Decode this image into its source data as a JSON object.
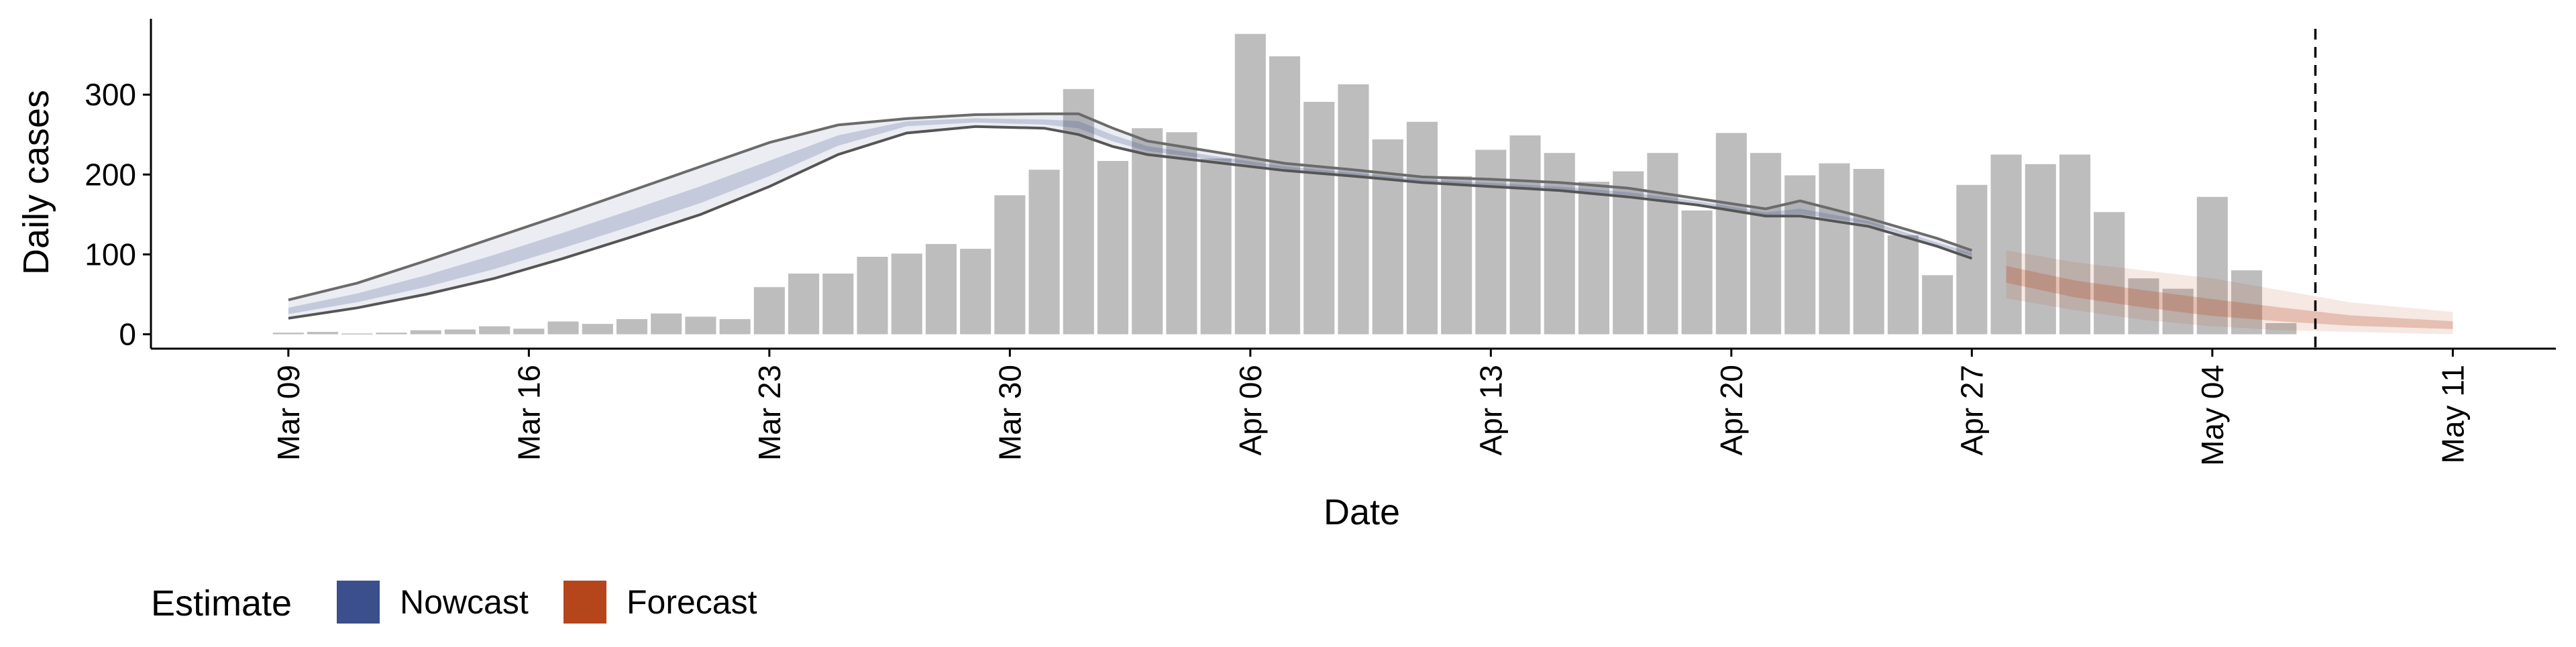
{
  "chart_data": {
    "type": "bar",
    "title": "",
    "xlabel": "Date",
    "ylabel": "Daily cases",
    "ylim": [
      -18,
      395
    ],
    "y_ticks": [
      0,
      100,
      200,
      300
    ],
    "x_ticks": [
      "2020-03-09",
      "2020-03-16",
      "2020-03-23",
      "2020-03-30",
      "2020-04-06",
      "2020-04-13",
      "2020-04-20",
      "2020-04-27",
      "2020-05-04",
      "2020-05-11"
    ],
    "x_tick_labels": [
      "Mar 09",
      "Mar 16",
      "Mar 23",
      "Mar 30",
      "Apr 06",
      "Apr 13",
      "Apr 20",
      "Apr 27",
      "May 04",
      "May 11"
    ],
    "xlim": [
      "2020-03-05",
      "2020-05-14"
    ],
    "grid": false,
    "bar_color": "#bdbdbd",
    "bars": {
      "dates": [
        "2020-03-09",
        "2020-03-10",
        "2020-03-11",
        "2020-03-12",
        "2020-03-13",
        "2020-03-14",
        "2020-03-15",
        "2020-03-16",
        "2020-03-17",
        "2020-03-18",
        "2020-03-19",
        "2020-03-20",
        "2020-03-21",
        "2020-03-22",
        "2020-03-23",
        "2020-03-24",
        "2020-03-25",
        "2020-03-26",
        "2020-03-27",
        "2020-03-28",
        "2020-03-29",
        "2020-03-30",
        "2020-03-31",
        "2020-04-01",
        "2020-04-02",
        "2020-04-03",
        "2020-04-04",
        "2020-04-05",
        "2020-04-06",
        "2020-04-07",
        "2020-04-08",
        "2020-04-09",
        "2020-04-10",
        "2020-04-11",
        "2020-04-12",
        "2020-04-13",
        "2020-04-14",
        "2020-04-15",
        "2020-04-16",
        "2020-04-17",
        "2020-04-18",
        "2020-04-19",
        "2020-04-20",
        "2020-04-21",
        "2020-04-22",
        "2020-04-23",
        "2020-04-24",
        "2020-04-25",
        "2020-04-26",
        "2020-04-27",
        "2020-04-28",
        "2020-04-29",
        "2020-04-30",
        "2020-05-01",
        "2020-05-02",
        "2020-05-03",
        "2020-05-04",
        "2020-05-05",
        "2020-05-06"
      ],
      "values": [
        2,
        3,
        1,
        2,
        5,
        6,
        10,
        7,
        16,
        13,
        19,
        26,
        22,
        19,
        59,
        76,
        76,
        97,
        101,
        113,
        107,
        174,
        206,
        307,
        217,
        258,
        253,
        220,
        376,
        348,
        291,
        313,
        244,
        266,
        198,
        231,
        249,
        227,
        191,
        204,
        227,
        155,
        252,
        227,
        199,
        214,
        207,
        124,
        74,
        187,
        225,
        213,
        225,
        153,
        70,
        57,
        172,
        80,
        14
      ]
    },
    "series": [
      {
        "name": "Nowcast",
        "color": "#3a4f8b",
        "dates": [
          "2020-03-09",
          "2020-03-11",
          "2020-03-13",
          "2020-03-15",
          "2020-03-17",
          "2020-03-19",
          "2020-03-21",
          "2020-03-23",
          "2020-03-25",
          "2020-03-27",
          "2020-03-29",
          "2020-03-31",
          "2020-04-01",
          "2020-04-02",
          "2020-04-03",
          "2020-04-05",
          "2020-04-07",
          "2020-04-09",
          "2020-04-11",
          "2020-04-13",
          "2020-04-15",
          "2020-04-17",
          "2020-04-19",
          "2020-04-21",
          "2020-04-22",
          "2020-04-24",
          "2020-04-26",
          "2020-04-27"
        ],
        "lower": [
          20,
          33,
          50,
          70,
          95,
          122,
          150,
          185,
          225,
          252,
          260,
          258,
          250,
          235,
          225,
          215,
          205,
          198,
          190,
          185,
          180,
          172,
          162,
          148,
          148,
          135,
          110,
          95
        ],
        "median": [
          28,
          44,
          64,
          88,
          115,
          143,
          172,
          205,
          242,
          265,
          268,
          265,
          262,
          245,
          232,
          220,
          208,
          200,
          192,
          187,
          182,
          175,
          165,
          150,
          152,
          140,
          112,
          100
        ],
        "upper": [
          43,
          64,
          92,
          121,
          150,
          180,
          210,
          240,
          262,
          270,
          275,
          276,
          276,
          258,
          242,
          228,
          214,
          206,
          197,
          194,
          190,
          183,
          170,
          157,
          167,
          145,
          120,
          105
        ]
      },
      {
        "name": "Forecast",
        "color": "#b5451b",
        "dates": [
          "2020-04-28",
          "2020-04-30",
          "2020-05-02",
          "2020-05-04",
          "2020-05-06",
          "2020-05-08",
          "2020-05-11"
        ],
        "lower": [
          45,
          30,
          18,
          10,
          5,
          3,
          0
        ],
        "median": [
          75,
          55,
          42,
          30,
          22,
          15,
          10
        ],
        "upper": [
          105,
          90,
          80,
          70,
          55,
          40,
          28
        ]
      }
    ],
    "vline": {
      "date": "2020-05-07",
      "style": "dashed"
    },
    "legend": {
      "title": "Estimate",
      "position": "bottom-left"
    }
  }
}
